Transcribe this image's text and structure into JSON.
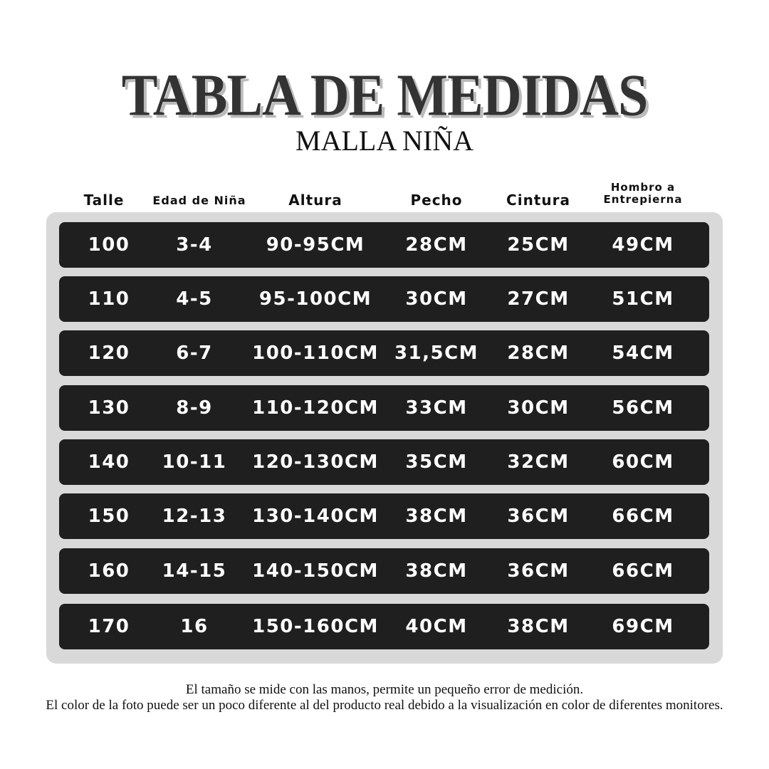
{
  "title": "TABLA DE MEDIDAS",
  "subtitle": "MALLA NIÑA",
  "headers": [
    "Talle",
    "Edad de Niña",
    "Altura",
    "Pecho",
    "Cintura",
    "Hombro a Entrepierna"
  ],
  "header_last_lines": [
    "Hombro a",
    "Entrepierna"
  ],
  "rows": [
    [
      "100",
      "3-4",
      "90-95CM",
      "28CM",
      "25CM",
      "49CM"
    ],
    [
      "110",
      "4-5",
      "95-100CM",
      "30CM",
      "27CM",
      "51CM"
    ],
    [
      "120",
      "6-7",
      "100-110CM",
      "31,5CM",
      "28CM",
      "54CM"
    ],
    [
      "130",
      "8-9",
      "110-120CM",
      "33CM",
      "30CM",
      "56CM"
    ],
    [
      "140",
      "10-11",
      "120-130CM",
      "35CM",
      "32CM",
      "60CM"
    ],
    [
      "150",
      "12-13",
      "130-140CM",
      "38CM",
      "36CM",
      "66CM"
    ],
    [
      "160",
      "14-15",
      "140-150CM",
      "38CM",
      "36CM",
      "66CM"
    ],
    [
      "170",
      "16",
      "150-160CM",
      "40CM",
      "38CM",
      "69CM"
    ]
  ],
  "footer": {
    "line1": "El tamaño se mide con las manos, permite un pequeño error de medición.",
    "line2": "El color de la foto puede ser un poco diferente al del producto real debido a la visualización en color de diferentes monitores."
  },
  "colors": {
    "row_bg": "#1f1f1f",
    "panel_bg": "#d9d9d9",
    "title": "#333333"
  }
}
